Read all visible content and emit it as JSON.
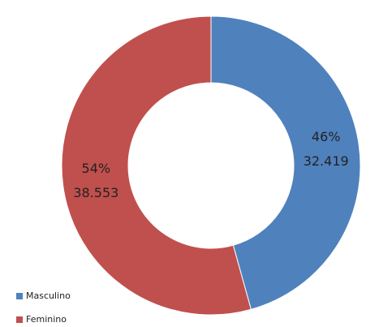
{
  "chart_data": {
    "type": "donut",
    "categories": [
      "Masculino",
      "Feminino"
    ],
    "values": [
      32419,
      38553
    ],
    "value_labels": [
      "32.419",
      "38.553"
    ],
    "percents": [
      46,
      54
    ],
    "percent_labels": [
      "46%",
      "54%"
    ],
    "colors": [
      "#4f81bd",
      "#c0504d"
    ],
    "legend": "bottom-left"
  }
}
